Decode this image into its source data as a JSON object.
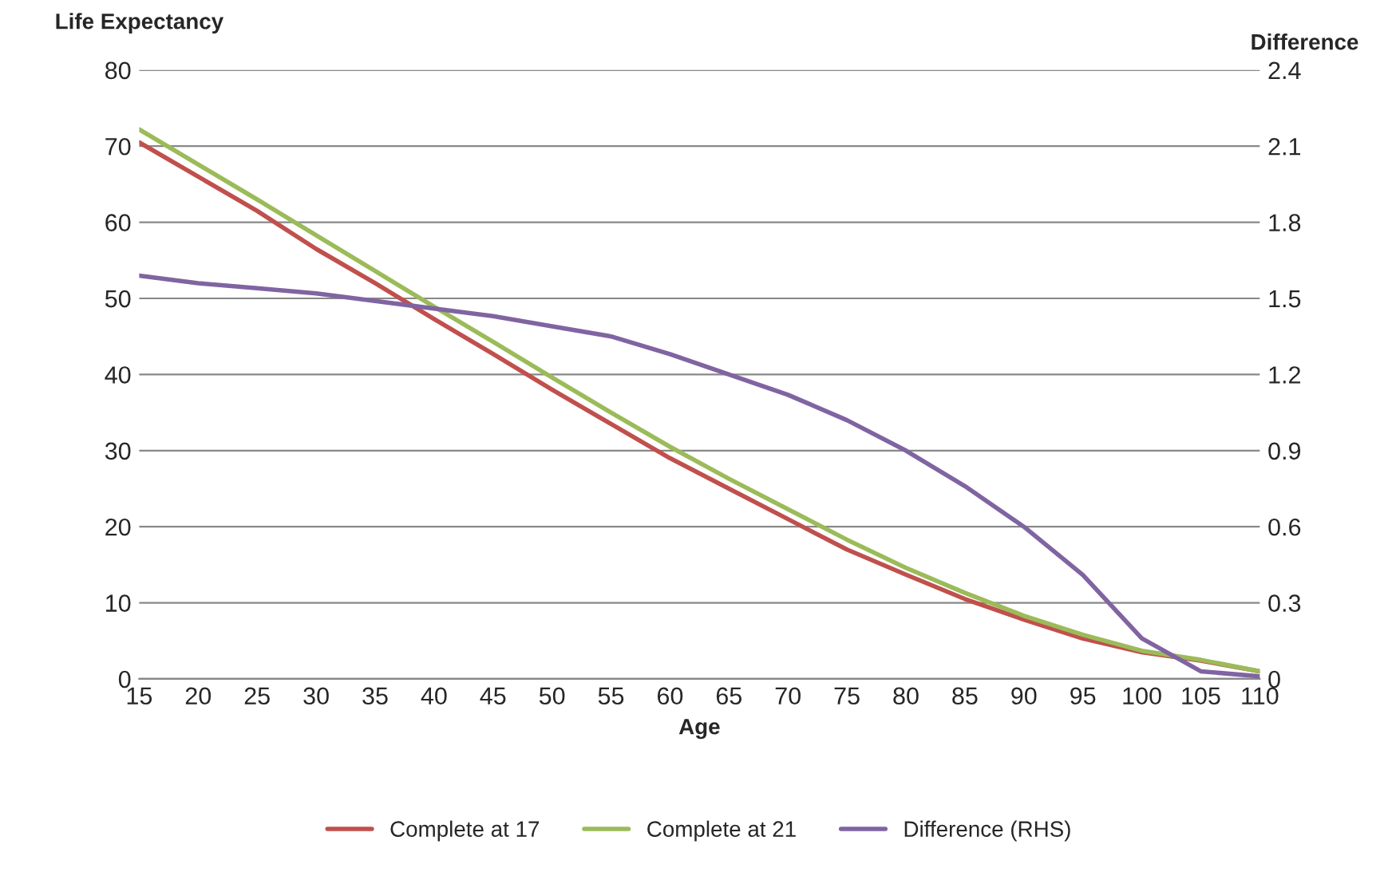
{
  "chart_data": {
    "type": "line",
    "xlabel": "Age",
    "ylabel": "Life Expectancy",
    "y2label": "Difference",
    "x": [
      15,
      20,
      25,
      30,
      35,
      40,
      45,
      50,
      55,
      60,
      65,
      70,
      75,
      80,
      85,
      90,
      95,
      100,
      105,
      110
    ],
    "series": [
      {
        "name": "Complete at 17",
        "color": "#c0504d",
        "values": [
          70.5,
          66,
          61.5,
          56.5,
          52,
          47.3,
          42.7,
          38,
          33.5,
          29,
          25,
          21,
          17,
          13.7,
          10.5,
          7.8,
          5.3,
          3.5,
          2.4,
          1
        ]
      },
      {
        "name": "Complete at 21",
        "color": "#9bbb59",
        "values": [
          72.2,
          67.6,
          63,
          58.3,
          53.6,
          48.9,
          44.3,
          39.6,
          35,
          30.5,
          26.3,
          22.3,
          18.3,
          14.6,
          11.3,
          8.3,
          5.8,
          3.7,
          2.5,
          1
        ]
      },
      {
        "name": "Difference (RHS)",
        "color": "#8064a2",
        "axis": "y2",
        "values": [
          1.59,
          1.56,
          1.54,
          1.52,
          1.49,
          1.46,
          1.43,
          1.39,
          1.35,
          1.28,
          1.2,
          1.12,
          1.02,
          0.9,
          0.76,
          0.6,
          0.41,
          0.16,
          0.03,
          0.01
        ]
      }
    ],
    "xlim": [
      15,
      110
    ],
    "xticks": [
      15,
      20,
      25,
      30,
      35,
      40,
      45,
      50,
      55,
      60,
      65,
      70,
      75,
      80,
      85,
      90,
      95,
      100,
      105,
      110
    ],
    "ylim": [
      0,
      80
    ],
    "yticks": [
      0,
      10,
      20,
      30,
      40,
      50,
      60,
      70,
      80
    ],
    "y2lim": [
      0,
      2.4
    ],
    "y2ticks": [
      "0",
      0.3,
      0.6,
      0.9,
      1.2,
      1.5,
      1.8,
      2.1,
      2.4
    ],
    "grid": "y",
    "legend": "bottom",
    "line_style": "solid",
    "marker": "none"
  }
}
